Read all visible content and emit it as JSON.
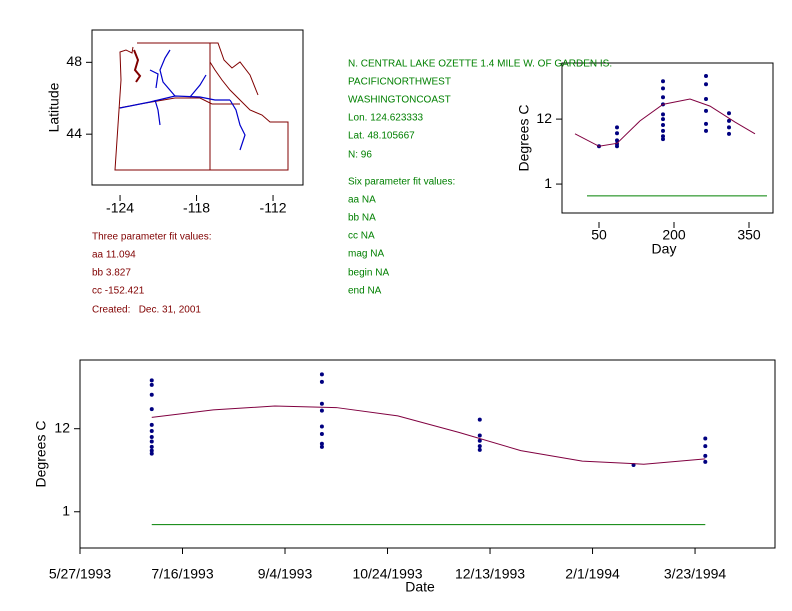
{
  "chart_data": [
    {
      "type": "map",
      "ylabel": "Latitude",
      "xlim": [
        -126.2,
        -109.65
      ],
      "ylim": [
        41.17,
        49.8
      ],
      "xticks": [
        -124,
        -118,
        -112
      ],
      "yticks": [
        44,
        48
      ]
    },
    {
      "type": "scatter",
      "xlabel": "Day",
      "ylabel": "Degrees C",
      "xlim": [
        -24,
        398
      ],
      "ylim": [
        -3.9,
        21.5
      ],
      "xticks": [
        50,
        200,
        350
      ],
      "yticks": [
        1,
        12
      ],
      "series": [
        {
          "mode": "markers",
          "color": "#000080",
          "x": [
            50,
            86,
            86,
            86,
            86,
            86,
            178,
            178,
            178,
            178,
            178,
            178,
            178,
            178,
            178,
            178,
            264,
            264,
            264,
            264,
            264,
            264,
            310,
            310,
            310,
            310
          ],
          "values": [
            7.4,
            10.6,
            9.6,
            8.4,
            7.8,
            7.4,
            18.4,
            17.2,
            15.7,
            14.5,
            12.8,
            12.0,
            11.0,
            10.0,
            9.1,
            8.6,
            19.3,
            17.9,
            15.4,
            13.4,
            11.2,
            10.0,
            13.0,
            11.7,
            10.6,
            9.5
          ]
        },
        {
          "mode": "line",
          "color": "#800040",
          "x": [
            2,
            50,
            86,
            132,
            178,
            232,
            272,
            322,
            362
          ],
          "values": [
            9.5,
            7.4,
            7.9,
            11.7,
            14.5,
            15.4,
            14.2,
            11.5,
            9.5
          ]
        },
        {
          "mode": "line",
          "color": "#008000",
          "x": [
            26,
            386
          ],
          "values": [
            -1.0,
            -1.0
          ]
        }
      ]
    },
    {
      "type": "scatter",
      "xlabel": "Date",
      "ylabel": "Degrees C",
      "xlim": [
        "1993-05-27",
        "1994-05-01"
      ],
      "ylim": [
        -3.8,
        21.1
      ],
      "xticks": [
        {
          "value": "1993-05-27",
          "label": "5/27/1993"
        },
        {
          "value": "1993-07-16",
          "label": "7/16/1993"
        },
        {
          "value": "1993-09-04",
          "label": "9/4/1993"
        },
        {
          "value": "1993-10-24",
          "label": "10/24/1993"
        },
        {
          "value": "1993-12-13",
          "label": "12/13/1993"
        },
        {
          "value": "1994-02-01",
          "label": "2/1/1994"
        },
        {
          "value": "1994-03-23",
          "label": "3/23/1994"
        }
      ],
      "yticks": [
        1,
        12
      ],
      "series": [
        {
          "mode": "markers",
          "color": "#000080",
          "x": [
            "1993-07-01",
            "1993-07-01",
            "1993-07-01",
            "1993-07-01",
            "1993-07-01",
            "1993-07-01",
            "1993-07-01",
            "1993-07-01",
            "1993-07-01",
            "1993-07-01",
            "1993-07-01",
            "1993-09-22",
            "1993-09-22",
            "1993-09-22",
            "1993-09-22",
            "1993-09-22",
            "1993-09-22",
            "1993-09-22",
            "1993-09-22",
            "1993-12-08",
            "1993-12-08",
            "1993-12-08",
            "1993-12-08",
            "1993-12-08",
            "1994-02-21",
            "1994-03-28",
            "1994-03-28",
            "1994-03-28",
            "1994-03-28"
          ],
          "values": [
            18.4,
            17.8,
            16.5,
            14.6,
            12.5,
            11.7,
            10.9,
            10.3,
            9.6,
            9.1,
            8.7,
            19.2,
            18.2,
            15.3,
            14.4,
            12.3,
            11.3,
            10.0,
            9.6,
            13.2,
            11.1,
            10.4,
            9.7,
            9.2,
            7.2,
            10.7,
            9.7,
            8.4,
            7.6
          ]
        },
        {
          "mode": "line",
          "color": "#800040",
          "x": [
            "1993-07-01",
            "1993-07-31",
            "1993-08-30",
            "1993-09-29",
            "1993-10-29",
            "1993-11-28",
            "1993-12-28",
            "1994-01-27",
            "1994-02-26",
            "1994-03-28"
          ],
          "values": [
            13.5,
            14.5,
            15.0,
            14.8,
            13.7,
            11.5,
            9.1,
            7.7,
            7.3,
            8.0
          ]
        },
        {
          "mode": "line",
          "color": "#008000",
          "x": [
            "1993-07-01",
            "1994-03-28"
          ],
          "values": [
            -0.7,
            -0.7
          ]
        }
      ]
    }
  ],
  "site_text": [
    "N. CENTRAL LAKE OZETTE 1.4 MILE W. OF GARDEN IS.",
    "PACIFICNORTHWEST",
    "WASHINGTONCOAST",
    "Lon. 124.623333",
    "Lat. 48.105667",
    "N: 96",
    "Six parameter fit values:",
    "aa NA",
    "bb NA",
    "cc NA",
    "mag NA",
    "begin NA",
    "end NA"
  ],
  "fit_text": [
    "Three parameter fit values:",
    "aa 11.094",
    "bb 3.827",
    "cc -152.421",
    "Created:   Dec. 31, 2001"
  ]
}
